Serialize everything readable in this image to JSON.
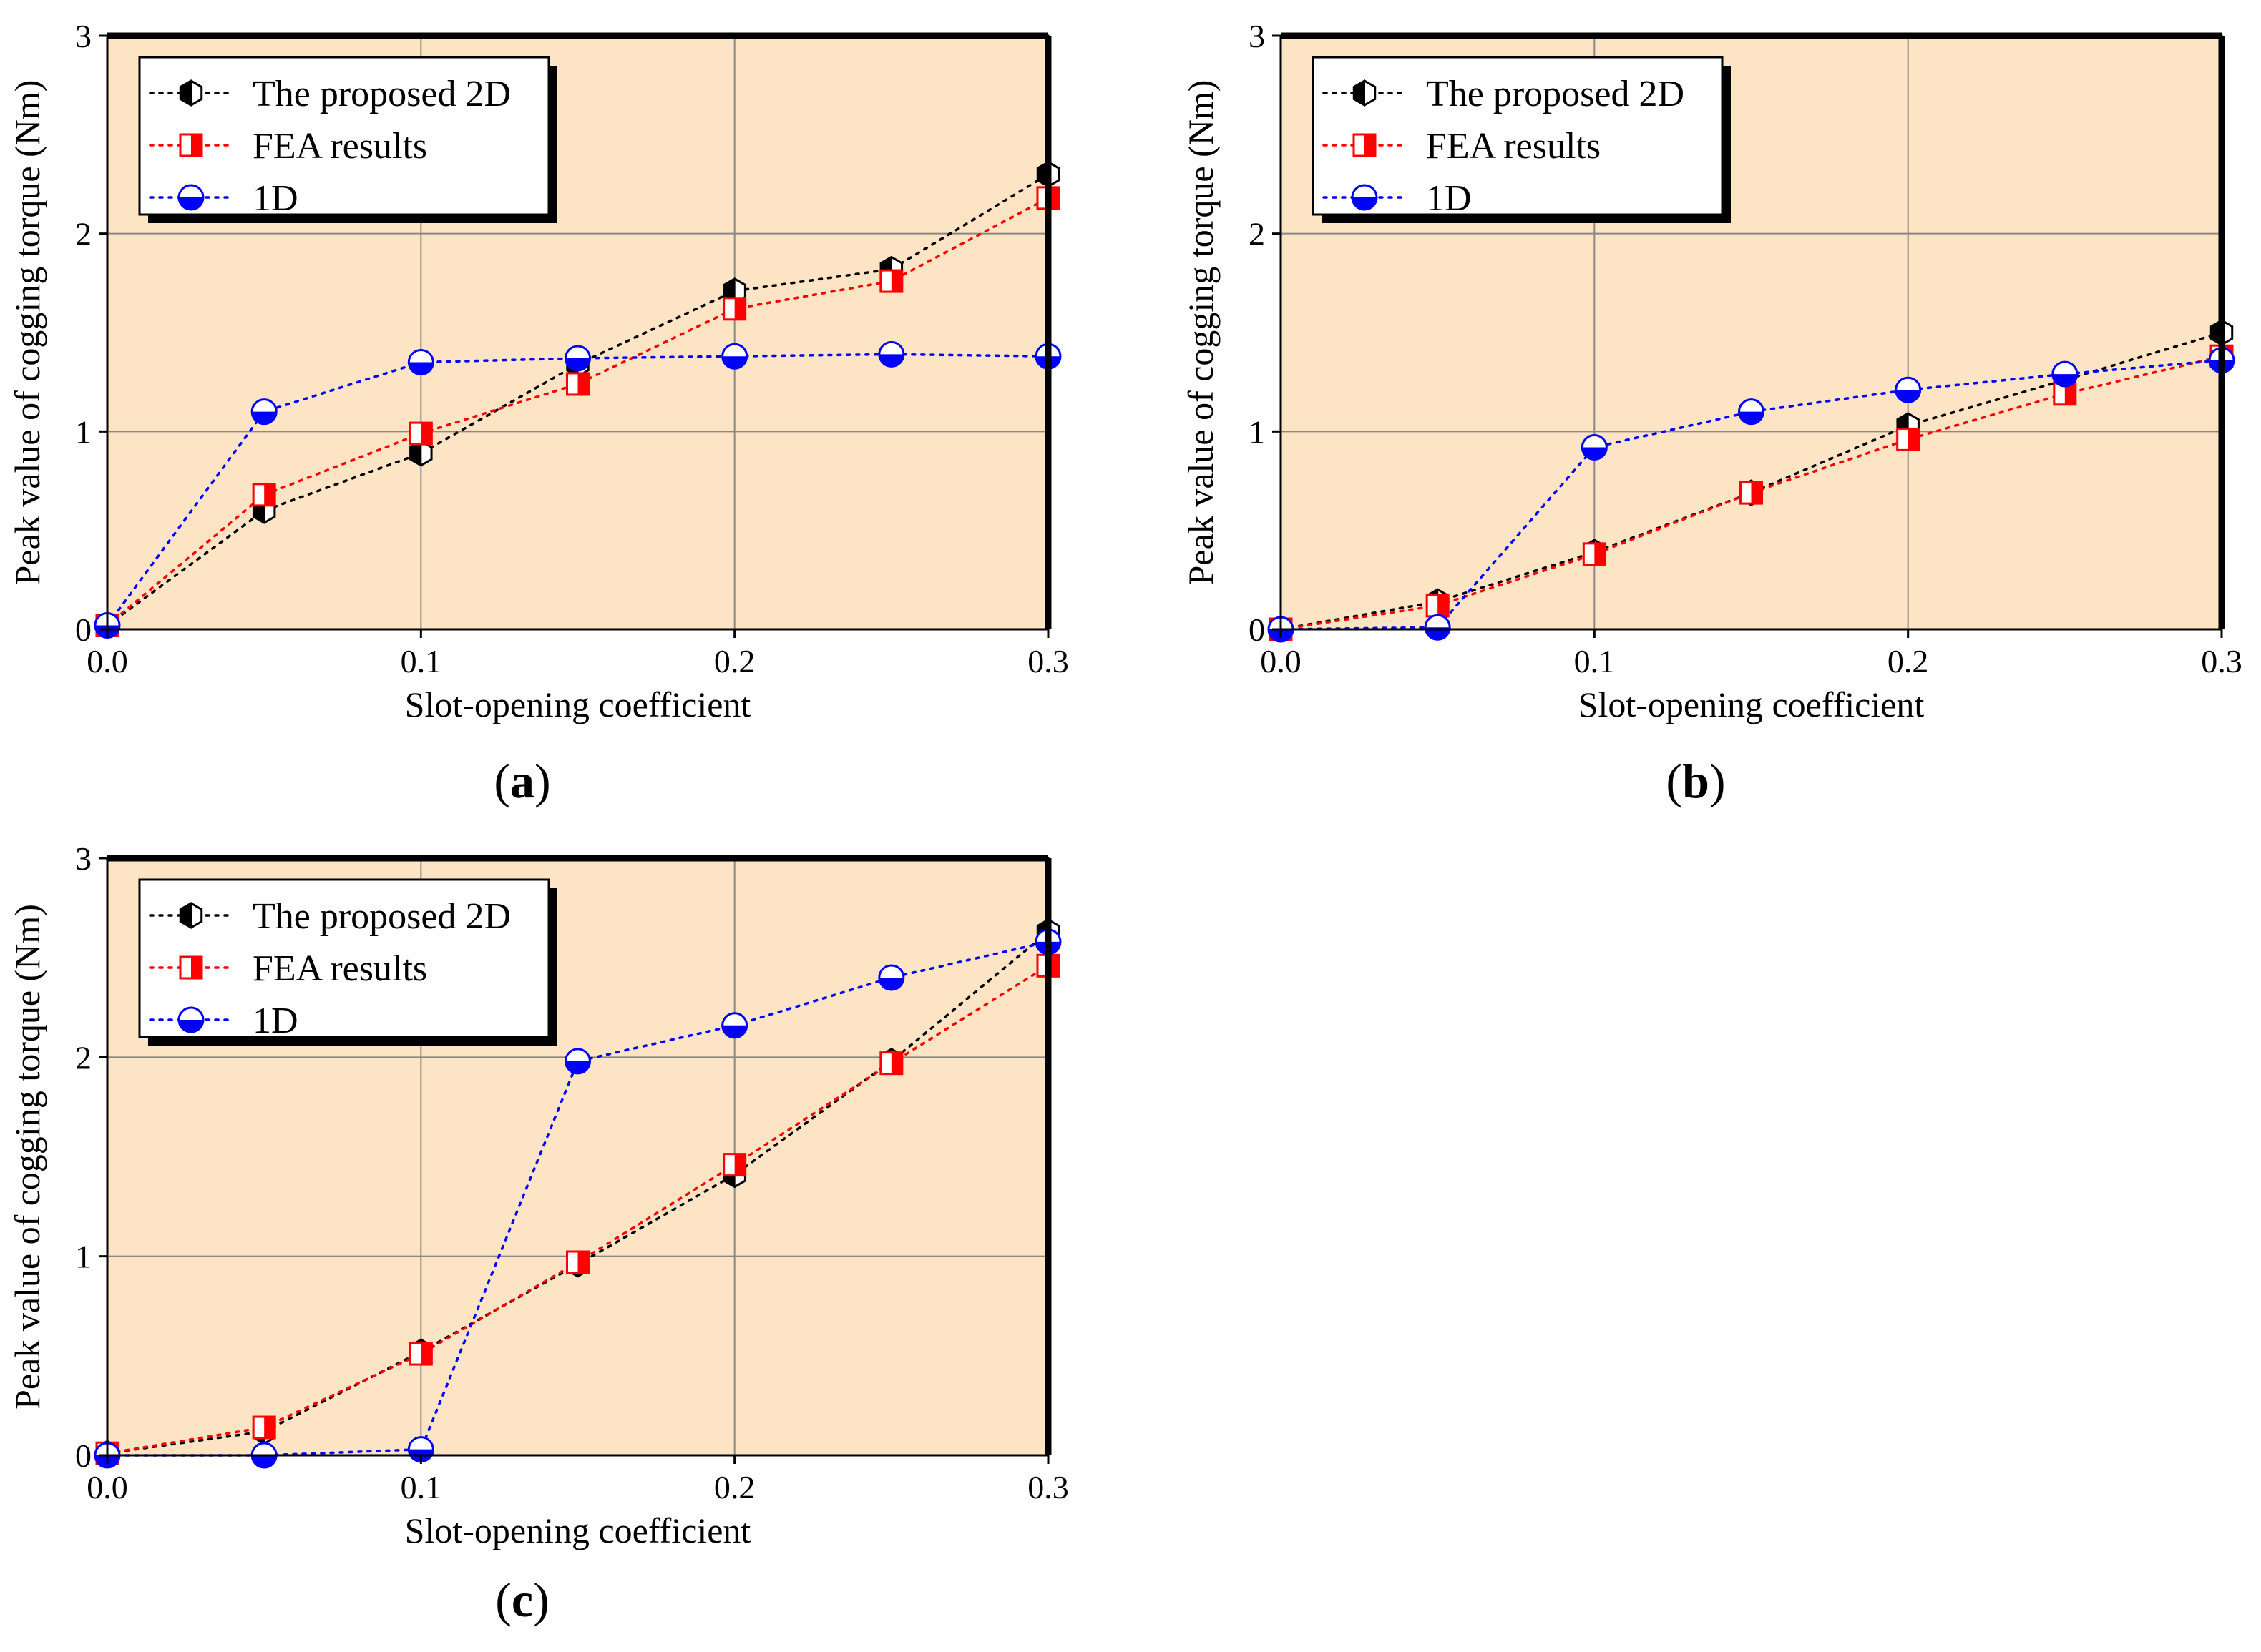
{
  "colors": {
    "plot_bg": "#FDE4C4",
    "frame": "#000000",
    "grid": "#888888",
    "proposed_2d": "#000000",
    "fea": "#FF0000",
    "one_d": "#0000FF"
  },
  "chart_data": [
    {
      "id": "a",
      "type": "line",
      "caption": "(a)",
      "caption_open": "(",
      "caption_letter": "a",
      "caption_close": ")",
      "xlabel": "Slot-opening coefficient",
      "ylabel": "Peak value of cogging torque (Nm)",
      "xlim": [
        0,
        0.3
      ],
      "ylim": [
        0,
        3
      ],
      "xticks": [
        0,
        0.1,
        0.2,
        0.3
      ],
      "xtick_labels": [
        "0.0",
        "0.1",
        "0.2",
        "0.3"
      ],
      "yticks": [
        0,
        1,
        2,
        3
      ],
      "ytick_labels": [
        "0",
        "1",
        "2",
        "3"
      ],
      "grid": true,
      "legend_position": "top-left",
      "x": [
        0,
        0.05,
        0.1,
        0.15,
        0.2,
        0.25,
        0.3
      ],
      "series": [
        {
          "name": "The proposed 2D",
          "values": [
            0.02,
            0.6,
            0.89,
            1.34,
            1.71,
            1.82,
            2.3
          ]
        },
        {
          "name": "FEA results",
          "values": [
            0.02,
            0.68,
            0.99,
            1.24,
            1.62,
            1.76,
            2.18
          ]
        },
        {
          "name": "1D",
          "values": [
            0.02,
            1.1,
            1.35,
            1.37,
            1.38,
            1.39,
            1.38
          ]
        }
      ]
    },
    {
      "id": "b",
      "type": "line",
      "caption": "(b)",
      "caption_open": "(",
      "caption_letter": "b",
      "caption_close": ")",
      "xlabel": "Slot-opening coefficient",
      "ylabel": "Peak value of cogging torque (Nm)",
      "xlim": [
        0,
        0.3
      ],
      "ylim": [
        0,
        3
      ],
      "xticks": [
        0,
        0.1,
        0.2,
        0.3
      ],
      "xtick_labels": [
        "0.0",
        "0.1",
        "0.2",
        "0.3"
      ],
      "yticks": [
        0,
        1,
        2,
        3
      ],
      "ytick_labels": [
        "0",
        "1",
        "2",
        "3"
      ],
      "grid": true,
      "legend_position": "top-left",
      "x": [
        0,
        0.05,
        0.1,
        0.15,
        0.2,
        0.25,
        0.3
      ],
      "series": [
        {
          "name": "The proposed 2D",
          "values": [
            0.0,
            0.14,
            0.39,
            0.69,
            1.03,
            1.26,
            1.5
          ]
        },
        {
          "name": "FEA results",
          "values": [
            0.0,
            0.12,
            0.38,
            0.69,
            0.96,
            1.19,
            1.38
          ]
        },
        {
          "name": "1D",
          "values": [
            0.0,
            0.01,
            0.92,
            1.1,
            1.21,
            1.29,
            1.36
          ]
        }
      ]
    },
    {
      "id": "c",
      "type": "line",
      "caption": "(c)",
      "caption_open": "(",
      "caption_letter": "c",
      "caption_close": ")",
      "xlabel": "Slot-opening coefficient",
      "ylabel": "Peak value of cogging torque (Nm)",
      "xlim": [
        0,
        0.3
      ],
      "ylim": [
        0,
        3
      ],
      "xticks": [
        0,
        0.1,
        0.2,
        0.3
      ],
      "xtick_labels": [
        "0.0",
        "0.1",
        "0.2",
        "0.3"
      ],
      "yticks": [
        0,
        1,
        2,
        3
      ],
      "ytick_labels": [
        "0",
        "1",
        "2",
        "3"
      ],
      "grid": true,
      "legend_position": "top-left",
      "x": [
        0,
        0.05,
        0.1,
        0.15,
        0.2,
        0.25,
        0.3
      ],
      "series": [
        {
          "name": "The proposed 2D",
          "values": [
            0.01,
            0.12,
            0.52,
            0.96,
            1.41,
            1.98,
            2.63
          ]
        },
        {
          "name": "FEA results",
          "values": [
            0.01,
            0.14,
            0.51,
            0.97,
            1.46,
            1.97,
            2.46
          ]
        },
        {
          "name": "1D",
          "values": [
            0.0,
            0.0,
            0.03,
            1.98,
            2.16,
            2.4,
            2.58
          ]
        }
      ]
    }
  ]
}
